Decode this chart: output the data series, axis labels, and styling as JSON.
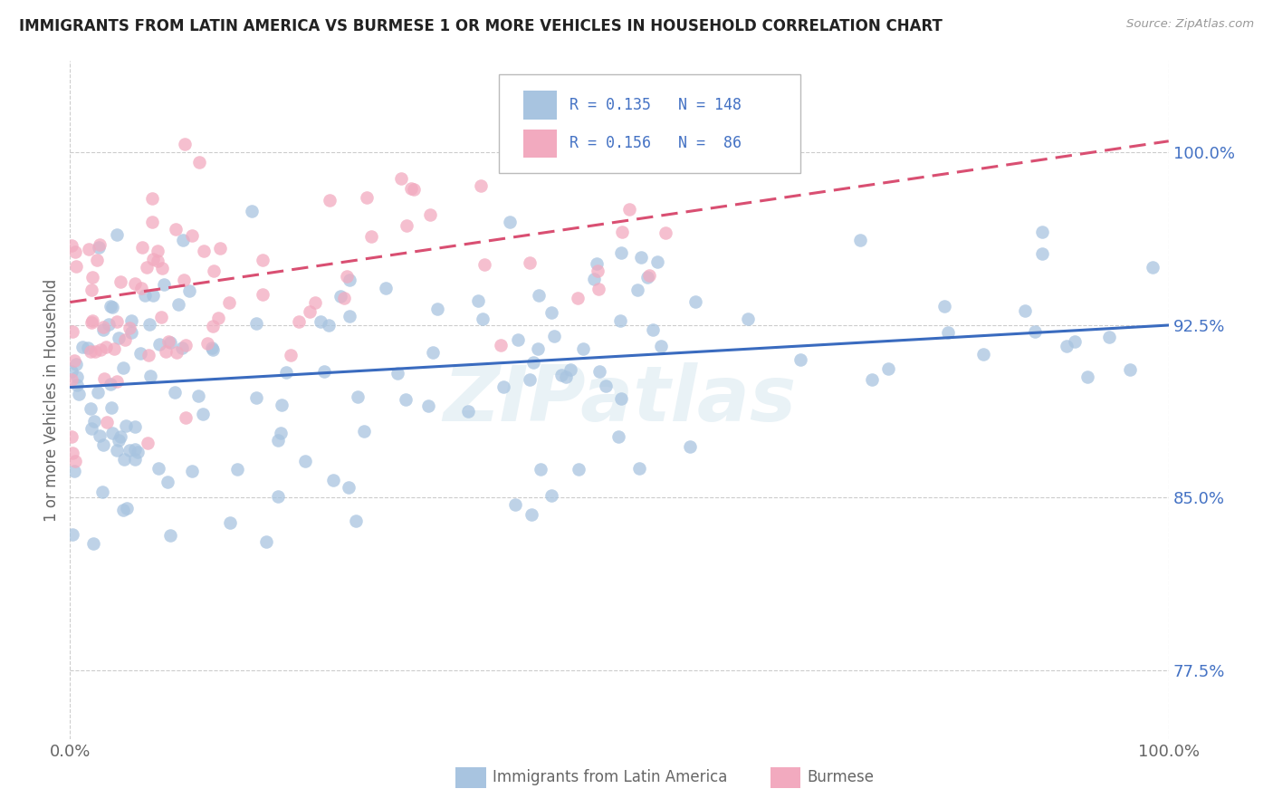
{
  "title": "IMMIGRANTS FROM LATIN AMERICA VS BURMESE 1 OR MORE VEHICLES IN HOUSEHOLD CORRELATION CHART",
  "source": "Source: ZipAtlas.com",
  "ylabel": "1 or more Vehicles in Household",
  "ytick_labels": [
    "77.5%",
    "85.0%",
    "92.5%",
    "100.0%"
  ],
  "ytick_values": [
    0.775,
    0.85,
    0.925,
    1.0
  ],
  "xmin": 0.0,
  "xmax": 1.0,
  "ymin": 0.745,
  "ymax": 1.04,
  "blue_scatter_color": "#a8c4e0",
  "pink_scatter_color": "#f2aabf",
  "blue_line_color": "#3a6bbf",
  "pink_line_color": "#d94f72",
  "legend_blue_label": "Immigrants from Latin America",
  "legend_pink_label": "Burmese",
  "R_blue": 0.135,
  "N_blue": 148,
  "R_pink": 0.156,
  "N_pink": 86,
  "watermark": "ZIPatlas",
  "label_color": "#4472c4",
  "tick_color": "#666666",
  "grid_color": "#cccccc",
  "title_color": "#222222",
  "source_color": "#999999",
  "blue_trend_x0": 0.0,
  "blue_trend_y0": 0.898,
  "blue_trend_x1": 1.0,
  "blue_trend_y1": 0.925,
  "pink_trend_x0": 0.0,
  "pink_trend_y0": 0.935,
  "pink_trend_x1": 1.0,
  "pink_trend_y1": 1.005
}
